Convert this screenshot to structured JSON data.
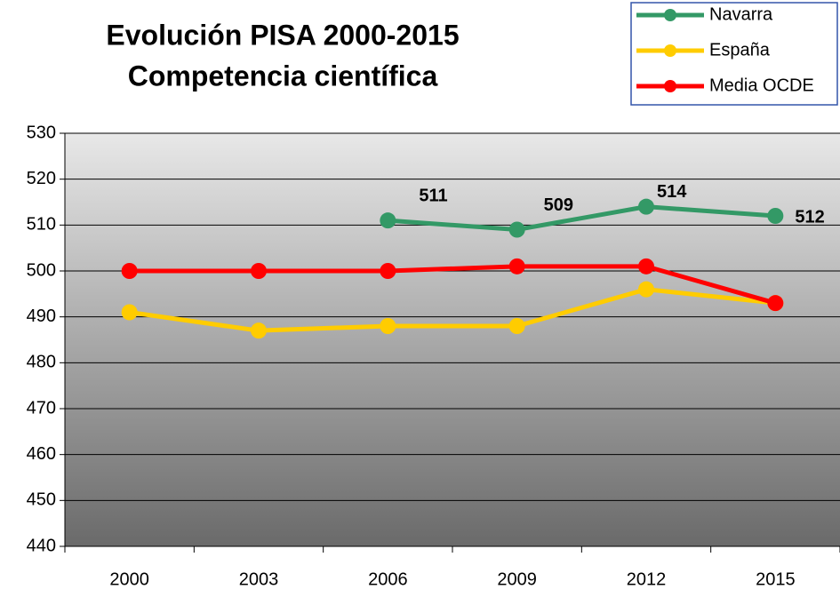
{
  "chart_data": {
    "type": "line",
    "title": "Evolución PISA 2000-2015",
    "subtitle": "Competencia científica",
    "categories": [
      "2000",
      "2003",
      "2006",
      "2009",
      "2012",
      "2015"
    ],
    "series": [
      {
        "name": "Navarra",
        "color": "#339966",
        "values": [
          null,
          null,
          511,
          509,
          514,
          512
        ]
      },
      {
        "name": "España",
        "color": "#ffcc00",
        "values": [
          491,
          487,
          488,
          488,
          496,
          493
        ]
      },
      {
        "name": "Media OCDE",
        "color": "#ff0000",
        "values": [
          500,
          500,
          500,
          501,
          501,
          493
        ]
      }
    ],
    "ylim": [
      440,
      530
    ],
    "yticks": [
      440,
      450,
      460,
      470,
      480,
      490,
      500,
      510,
      520,
      530
    ],
    "grid": true,
    "legend": "top-right"
  }
}
